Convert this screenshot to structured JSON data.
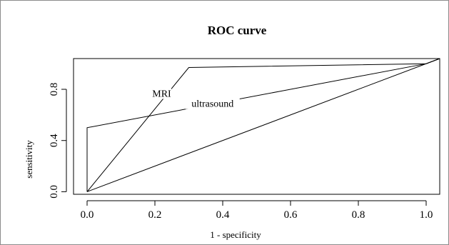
{
  "chart_data": {
    "type": "line",
    "title": "ROC curve",
    "xlabel": "1 - specificity",
    "ylabel": "sensitivity",
    "xlim": [
      -0.04,
      1.04
    ],
    "ylim": [
      -0.02,
      1.04
    ],
    "x_ticks": [
      0.0,
      0.2,
      0.4,
      0.6,
      0.8,
      1.0
    ],
    "x_tick_labels": [
      "0.0",
      "0.2",
      "0.4",
      "0.6",
      "0.8",
      "1.0"
    ],
    "y_ticks": [
      0.0,
      0.4,
      0.8
    ],
    "y_tick_labels": [
      "0.0",
      "0.4",
      "0.8"
    ],
    "grid": false,
    "series": [
      {
        "name": "MRI",
        "x": [
          0.0,
          0.3,
          1.0,
          1.04
        ],
        "y": [
          0.0,
          0.97,
          1.0,
          1.04
        ]
      },
      {
        "name": "ultrasound",
        "x": [
          0.0,
          0.0,
          1.0,
          1.04
        ],
        "y": [
          0.0,
          0.5,
          1.0,
          1.04
        ]
      },
      {
        "name": "",
        "x": [
          0.0,
          1.04
        ],
        "y": [
          0.0,
          1.04
        ]
      }
    ],
    "annotations": [
      {
        "text": "MRI",
        "x": 0.22,
        "y": 0.77
      },
      {
        "text": "ultrasound",
        "x": 0.37,
        "y": 0.69
      }
    ]
  }
}
